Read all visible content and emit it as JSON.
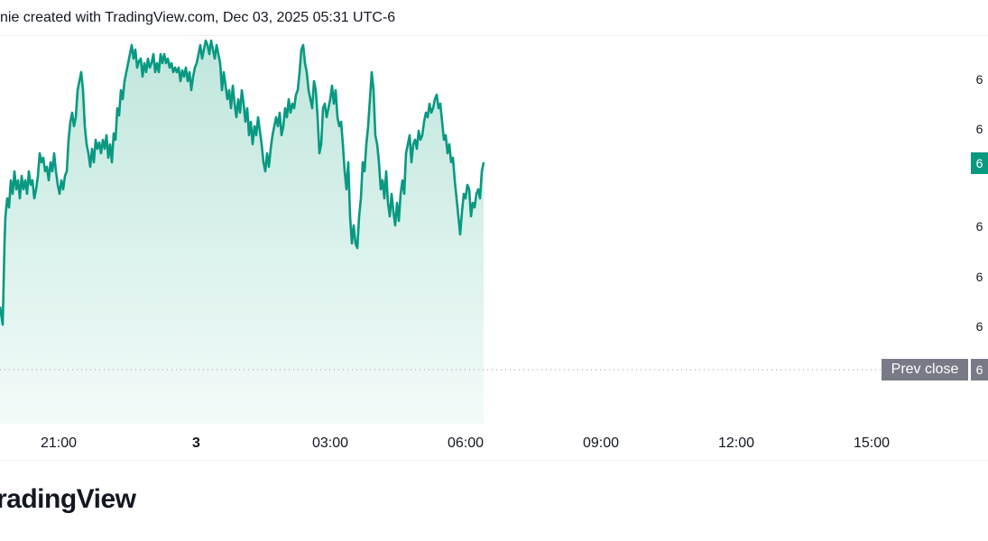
{
  "header": {
    "attribution": "nie created with TradingView.com, Dec 03, 2025 05:31 UTC-6"
  },
  "footer": {
    "logo_text": "radingView"
  },
  "labels": {
    "prev_close": "Prev close",
    "prev_close_value": "6",
    "current_price": "6"
  },
  "colors": {
    "line": "#089981",
    "area_top": "#bfe6dc",
    "area_bottom": "#f3fbf9",
    "prev_close_badge": "#787b86",
    "dotted_line": "#9598a1"
  },
  "chart_data": {
    "type": "area",
    "x_tick_labels": [
      "21:00",
      "3",
      "03:00",
      "06:00",
      "09:00",
      "12:00",
      "15:00"
    ],
    "y_tick_labels": [
      "6",
      "6",
      "6",
      "6",
      "6",
      "6"
    ],
    "series": [
      {
        "values": [
          [
            0,
            300
          ],
          [
            3,
            320
          ],
          [
            5,
            230
          ],
          [
            6,
            200
          ],
          [
            8,
            180
          ],
          [
            10,
            190
          ],
          [
            12,
            160
          ],
          [
            14,
            175
          ],
          [
            16,
            150
          ],
          [
            18,
            170
          ],
          [
            20,
            160
          ],
          [
            22,
            180
          ],
          [
            24,
            155
          ],
          [
            26,
            170
          ],
          [
            28,
            160
          ],
          [
            30,
            175
          ],
          [
            32,
            150
          ],
          [
            34,
            165
          ],
          [
            36,
            160
          ],
          [
            38,
            180
          ],
          [
            40,
            170
          ],
          [
            42,
            155
          ],
          [
            44,
            130
          ],
          [
            46,
            140
          ],
          [
            48,
            135
          ],
          [
            50,
            150
          ],
          [
            52,
            145
          ],
          [
            54,
            160
          ],
          [
            56,
            140
          ],
          [
            58,
            150
          ],
          [
            60,
            130
          ],
          [
            62,
            150
          ],
          [
            64,
            165
          ],
          [
            66,
            175
          ],
          [
            68,
            160
          ],
          [
            70,
            170
          ],
          [
            72,
            155
          ],
          [
            74,
            150
          ],
          [
            76,
            115
          ],
          [
            78,
            95
          ],
          [
            80,
            85
          ],
          [
            82,
            100
          ],
          [
            84,
            90
          ],
          [
            86,
            60
          ],
          [
            88,
            50
          ],
          [
            90,
            40
          ],
          [
            92,
            60
          ],
          [
            94,
            100
          ],
          [
            96,
            120
          ],
          [
            98,
            130
          ],
          [
            100,
            145
          ],
          [
            102,
            125
          ],
          [
            104,
            140
          ],
          [
            106,
            115
          ],
          [
            108,
            125
          ],
          [
            110,
            118
          ],
          [
            112,
            130
          ],
          [
            114,
            115
          ],
          [
            116,
            125
          ],
          [
            118,
            110
          ],
          [
            120,
            135
          ],
          [
            122,
            120
          ],
          [
            124,
            140
          ],
          [
            126,
            108
          ],
          [
            128,
            115
          ],
          [
            130,
            80
          ],
          [
            132,
            88
          ],
          [
            134,
            60
          ],
          [
            136,
            70
          ],
          [
            138,
            50
          ],
          [
            140,
            40
          ],
          [
            142,
            30
          ],
          [
            144,
            20
          ],
          [
            146,
            10
          ],
          [
            148,
            25
          ],
          [
            150,
            15
          ],
          [
            152,
            35
          ],
          [
            154,
            28
          ],
          [
            156,
            25
          ],
          [
            158,
            45
          ],
          [
            160,
            30
          ],
          [
            162,
            40
          ],
          [
            164,
            25
          ],
          [
            166,
            35
          ],
          [
            168,
            30
          ],
          [
            170,
            20
          ],
          [
            172,
            40
          ],
          [
            174,
            30
          ],
          [
            176,
            40
          ],
          [
            178,
            20
          ],
          [
            180,
            30
          ],
          [
            182,
            20
          ],
          [
            184,
            30
          ],
          [
            186,
            25
          ],
          [
            188,
            35
          ],
          [
            190,
            30
          ],
          [
            192,
            40
          ],
          [
            194,
            35
          ],
          [
            196,
            40
          ],
          [
            198,
            35
          ],
          [
            200,
            50
          ],
          [
            202,
            38
          ],
          [
            204,
            45
          ],
          [
            206,
            35
          ],
          [
            208,
            50
          ],
          [
            210,
            40
          ],
          [
            212,
            60
          ],
          [
            214,
            45
          ],
          [
            216,
            35
          ],
          [
            218,
            30
          ],
          [
            220,
            20
          ],
          [
            222,
            10
          ],
          [
            224,
            25
          ],
          [
            226,
            15
          ],
          [
            228,
            5
          ],
          [
            230,
            10
          ],
          [
            232,
            20
          ],
          [
            234,
            5
          ],
          [
            236,
            15
          ],
          [
            238,
            25
          ],
          [
            240,
            10
          ],
          [
            242,
            20
          ],
          [
            244,
            30
          ],
          [
            246,
            60
          ],
          [
            248,
            40
          ],
          [
            250,
            55
          ],
          [
            252,
            70
          ],
          [
            254,
            60
          ],
          [
            256,
            80
          ],
          [
            258,
            55
          ],
          [
            260,
            75
          ],
          [
            262,
            90
          ],
          [
            264,
            70
          ],
          [
            266,
            85
          ],
          [
            268,
            60
          ],
          [
            270,
            75
          ],
          [
            272,
            95
          ],
          [
            274,
            80
          ],
          [
            276,
            110
          ],
          [
            278,
            95
          ],
          [
            280,
            120
          ],
          [
            282,
            100
          ],
          [
            284,
            110
          ],
          [
            286,
            90
          ],
          [
            288,
            105
          ],
          [
            290,
            120
          ],
          [
            292,
            140
          ],
          [
            294,
            150
          ],
          [
            296,
            130
          ],
          [
            298,
            145
          ],
          [
            300,
            125
          ],
          [
            302,
            110
          ],
          [
            304,
            100
          ],
          [
            306,
            90
          ],
          [
            308,
            100
          ],
          [
            310,
            85
          ],
          [
            312,
            110
          ],
          [
            314,
            100
          ],
          [
            316,
            80
          ],
          [
            318,
            90
          ],
          [
            320,
            70
          ],
          [
            322,
            85
          ],
          [
            324,
            75
          ],
          [
            326,
            80
          ],
          [
            328,
            65
          ],
          [
            330,
            60
          ],
          [
            332,
            40
          ],
          [
            334,
            15
          ],
          [
            336,
            10
          ],
          [
            338,
            30
          ],
          [
            340,
            40
          ],
          [
            342,
            60
          ],
          [
            344,
            70
          ],
          [
            346,
            80
          ],
          [
            348,
            50
          ],
          [
            350,
            60
          ],
          [
            352,
            90
          ],
          [
            354,
            130
          ],
          [
            356,
            120
          ],
          [
            358,
            80
          ],
          [
            360,
            75
          ],
          [
            362,
            90
          ],
          [
            364,
            80
          ],
          [
            366,
            70
          ],
          [
            368,
            55
          ],
          [
            370,
            75
          ],
          [
            372,
            60
          ],
          [
            374,
            90
          ],
          [
            376,
            100
          ],
          [
            378,
            95
          ],
          [
            380,
            120
          ],
          [
            382,
            150
          ],
          [
            384,
            170
          ],
          [
            386,
            140
          ],
          [
            388,
            200
          ],
          [
            390,
            230
          ],
          [
            392,
            210
          ],
          [
            394,
            230
          ],
          [
            396,
            235
          ],
          [
            398,
            200
          ],
          [
            400,
            180
          ],
          [
            402,
            140
          ],
          [
            404,
            150
          ],
          [
            406,
            120
          ],
          [
            408,
            100
          ],
          [
            410,
            70
          ],
          [
            412,
            40
          ],
          [
            414,
            60
          ],
          [
            416,
            110
          ],
          [
            418,
            120
          ],
          [
            420,
            140
          ],
          [
            422,
            170
          ],
          [
            424,
            160
          ],
          [
            426,
            180
          ],
          [
            428,
            150
          ],
          [
            430,
            185
          ],
          [
            432,
            200
          ],
          [
            434,
            175
          ],
          [
            436,
            195
          ],
          [
            438,
            210
          ],
          [
            440,
            185
          ],
          [
            442,
            205
          ],
          [
            444,
            175
          ],
          [
            446,
            160
          ],
          [
            448,
            175
          ],
          [
            450,
            130
          ],
          [
            452,
            120
          ],
          [
            454,
            110
          ],
          [
            456,
            140
          ],
          [
            458,
            120
          ],
          [
            460,
            115
          ],
          [
            462,
            125
          ],
          [
            464,
            105
          ],
          [
            466,
            115
          ],
          [
            468,
            110
          ],
          [
            470,
            95
          ],
          [
            472,
            85
          ],
          [
            474,
            90
          ],
          [
            476,
            75
          ],
          [
            478,
            85
          ],
          [
            480,
            80
          ],
          [
            482,
            70
          ],
          [
            484,
            65
          ],
          [
            486,
            80
          ],
          [
            488,
            75
          ],
          [
            490,
            95
          ],
          [
            492,
            115
          ],
          [
            494,
            110
          ],
          [
            496,
            130
          ],
          [
            498,
            120
          ],
          [
            500,
            140
          ],
          [
            502,
            135
          ],
          [
            504,
            160
          ],
          [
            506,
            180
          ],
          [
            508,
            200
          ],
          [
            510,
            220
          ],
          [
            512,
            195
          ],
          [
            514,
            175
          ],
          [
            516,
            180
          ],
          [
            518,
            165
          ],
          [
            520,
            170
          ],
          [
            522,
            200
          ],
          [
            524,
            185
          ],
          [
            526,
            190
          ],
          [
            528,
            175
          ],
          [
            530,
            170
          ],
          [
            532,
            180
          ],
          [
            534,
            150
          ],
          [
            536,
            140
          ]
        ]
      }
    ],
    "previous_close": 370,
    "grid": false
  }
}
